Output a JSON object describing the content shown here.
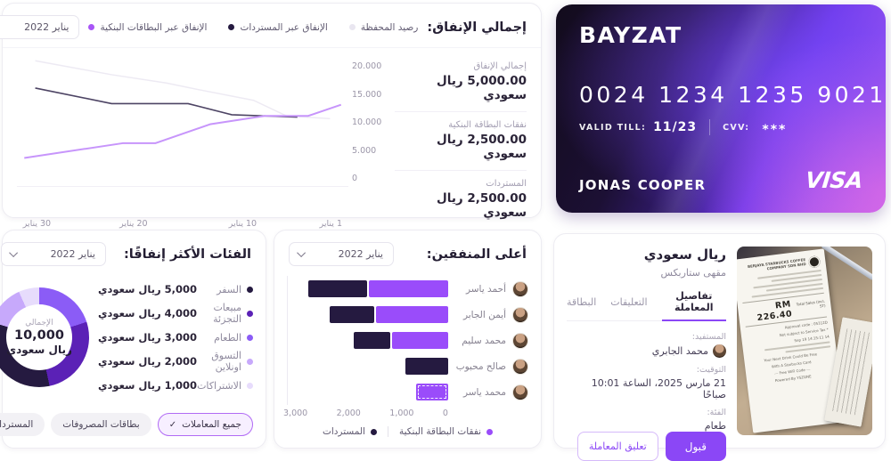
{
  "spending_card": {
    "title": "إجمالي الإنفاق:",
    "period": {
      "value": "يناير 2022"
    },
    "legend": [
      {
        "label": "رصيد المحفظة",
        "color": "#e9e6f0"
      },
      {
        "label": "الإنفاق عبر المستردات",
        "color": "#251a40"
      },
      {
        "label": "الإنفاق عبر البطاقات البنكية",
        "color": "#a855f7"
      }
    ],
    "stats": [
      {
        "label": "إجمالي الإنفاق",
        "value": "5,000.00 ريال سعودي"
      },
      {
        "label": "نفقات البطاقة البنكية",
        "value": "2,500.00 ريال سعودي"
      },
      {
        "label": "المستردات",
        "value": "2,500.00 ريال سعودي"
      }
    ],
    "chart_data": {
      "type": "line",
      "rtl": true,
      "x_ticks": [
        {
          "day": 1,
          "label": "1 يناير"
        },
        {
          "day": 10,
          "label": "10 يناير"
        },
        {
          "day": 20,
          "label": "20 يناير"
        },
        {
          "day": 30,
          "label": "30 يناير"
        }
      ],
      "y_ticks": [
        {
          "value": 20000,
          "label": "20.000"
        },
        {
          "value": 15000,
          "label": "15.000"
        },
        {
          "value": 10000,
          "label": "10.000"
        },
        {
          "value": 5000,
          "label": "5.000"
        },
        {
          "value": 0,
          "label": "0"
        }
      ],
      "ylim": [
        0,
        20000
      ],
      "series": [
        {
          "name": "رصيد المحفظة",
          "color": "#edeaf3",
          "stroke_width": 1.5,
          "points": [
            [
              2,
              10500
            ],
            [
              6,
              11000
            ],
            [
              9,
              13800
            ],
            [
              14,
              15700
            ],
            [
              17,
              16900
            ],
            [
              22,
              18400
            ],
            [
              29,
              20900
            ]
          ]
        },
        {
          "name": "الإنفاق عبر المستردات",
          "color": "#4d4464",
          "stroke_width": 1.6,
          "points": [
            [
              5,
              10800
            ],
            [
              11,
              11200
            ],
            [
              15,
              13200
            ],
            [
              22,
              13200
            ],
            [
              29,
              16000
            ]
          ]
        },
        {
          "name": "الإنفاق عبر البطاقات البنكية",
          "color": "#c795fb",
          "stroke_width": 2,
          "points": [
            [
              1,
              13000
            ],
            [
              4,
              11000
            ],
            [
              8,
              11000
            ],
            [
              13,
              9500
            ],
            [
              18,
              6100
            ],
            [
              21,
              6100
            ],
            [
              30,
              3450
            ]
          ]
        }
      ]
    }
  },
  "bank_card": {
    "brand": "BAYZAT",
    "number": "0024 1234 1235 9021",
    "valid_label": "VALID TILL:",
    "valid_value": "11/23",
    "cvv_label": "CVV:",
    "cvv_value": "***",
    "holder": "JONAS COOPER",
    "network": "VISA"
  },
  "categories_card": {
    "title": "الفئات الأكثر إنفاقًا:",
    "period": {
      "value": "يناير 2022"
    },
    "center": {
      "label": "الإجمالي",
      "value": "10,000",
      "unit": "ريال سعودي"
    },
    "chart_data": {
      "type": "pie",
      "slices_clockwise_from_top": [
        {
          "label": "الطعام",
          "value": 3000,
          "color": "#8b5cf6"
        },
        {
          "label": "مبيعات التجزئة",
          "value": 4000,
          "color": "#5b21b6"
        },
        {
          "label": "السفر",
          "value": 5000,
          "color": "#251a40"
        },
        {
          "label": "التسوق اونلاين",
          "value": 2000,
          "color": "#c7a9fb"
        },
        {
          "label": "الاشتراكات",
          "value": 1000,
          "color": "#e7dcfc"
        }
      ]
    },
    "legend": [
      {
        "name": "السفر",
        "amount": "5,000 ريال سعودي",
        "color": "#251a40"
      },
      {
        "name": "مبيعات التجزئة",
        "amount": "4,000 ريال سعودي",
        "color": "#5b21b6"
      },
      {
        "name": "الطعام",
        "amount": "3,000 ريال سعودي",
        "color": "#8b5cf6"
      },
      {
        "name": "التسوق اونلاين",
        "amount": "2,000 ريال سعودي",
        "color": "#c7a9fb"
      },
      {
        "name": "الاشتراكات",
        "amount": "1,000 ريال سعودي",
        "color": "#e7dcfc"
      }
    ],
    "filters": [
      {
        "label": "جميع المعاملات",
        "selected": true
      },
      {
        "label": "بطاقات المصروفات",
        "selected": false
      },
      {
        "label": "المستردات",
        "selected": false
      }
    ]
  },
  "spenders_card": {
    "title": "أعلى المنفقين:",
    "period": {
      "value": "يناير 2022"
    },
    "chart_data": {
      "type": "bar",
      "orientation": "horizontal",
      "rtl": true,
      "xmax": 3000,
      "x_ticks": [
        "3,000",
        "2,000",
        "1,000",
        "0"
      ],
      "series": [
        {
          "name": "نفقات البطاقة البنكية",
          "color": "#9a4cfa"
        },
        {
          "name": "المستردات",
          "color": "#251a40"
        }
      ],
      "rows": [
        {
          "name": "أحمد ياسر",
          "bank_cards": 1500,
          "refunds": 1100,
          "highlighted": false
        },
        {
          "name": "أيمن الجابر",
          "bank_cards": 1350,
          "refunds": 850,
          "highlighted": false
        },
        {
          "name": "محمد سليم",
          "bank_cards": 1050,
          "refunds": 700,
          "highlighted": false
        },
        {
          "name": "صالح محبوب",
          "bank_cards": 0,
          "refunds": 800,
          "highlighted": false
        },
        {
          "name": "محمد ياسر",
          "bank_cards": 600,
          "refunds": 0,
          "highlighted": true
        }
      ]
    }
  },
  "transaction_card": {
    "title": "ريال سعودي",
    "merchant": "مقهى ستاربكس",
    "tabs": [
      {
        "label": "تفاصيل المعاملة",
        "active": true
      },
      {
        "label": "التعليقات",
        "active": false
      },
      {
        "label": "البطاقة",
        "active": false
      }
    ],
    "fields": [
      {
        "label": "المستفيد:",
        "value": "محمد الجابري",
        "avatar": true
      },
      {
        "label": "التوقيت:",
        "value": "21 مارس 2025، الساعة 10:01 صباحًا",
        "avatar": false
      },
      {
        "label": "الفئة:",
        "value": "طعام",
        "avatar": false
      }
    ],
    "accept_button": "قبول",
    "suspend_button": "تعليق المعاملة",
    "receipt": {
      "header_lines": [
        "BERJAYA STARBUCKS COFFEE",
        "COMPANY SDN BHD"
      ],
      "total_label": "Total Sales (Incl. ST)",
      "total": "RM 226.40",
      "detail_lines": [
        "Approval code : 05312D",
        "* Not subject to Service Tax",
        "14 Sep 19 14:15:11"
      ],
      "footer_lines": [
        "Your Next Drink Could Be Free",
        "With A Starbucks Card",
        "--- Free WiFi Code ---",
        "Powered By YSZONE"
      ]
    }
  }
}
